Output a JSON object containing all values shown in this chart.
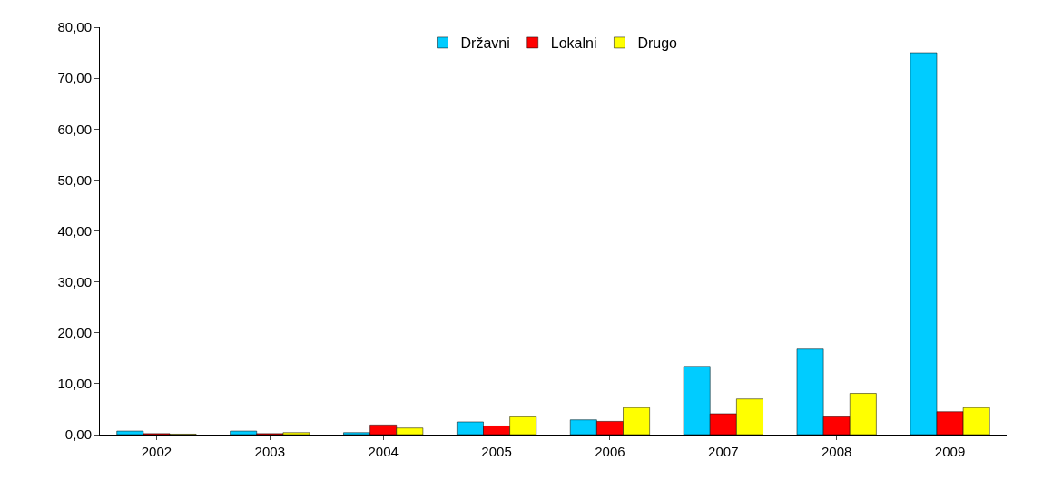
{
  "chart_data": {
    "type": "bar",
    "categories": [
      "2002",
      "2003",
      "2004",
      "2005",
      "2006",
      "2007",
      "2008",
      "2009"
    ],
    "series": [
      {
        "name": "Državni",
        "color": "#00ccff",
        "values": [
          0.7,
          0.7,
          0.4,
          2.5,
          2.9,
          13.4,
          16.8,
          75
        ]
      },
      {
        "name": "Lokalni",
        "color": "#ff0000",
        "values": [
          0.2,
          0.2,
          1.9,
          1.7,
          2.6,
          4.1,
          3.5,
          4.5
        ]
      },
      {
        "name": "Drugo",
        "color": "#ffff00",
        "values": [
          0.1,
          0.4,
          1.3,
          3.5,
          5.3,
          7.0,
          8.1,
          5.3
        ]
      }
    ],
    "ylim": [
      0,
      80
    ],
    "yticks": [
      {
        "value": 0,
        "label": "0,00"
      },
      {
        "value": 10,
        "label": "10,00"
      },
      {
        "value": 20,
        "label": "20,00"
      },
      {
        "value": 30,
        "label": "30,00"
      },
      {
        "value": 40,
        "label": "40,00"
      },
      {
        "value": 50,
        "label": "50,00"
      },
      {
        "value": 60,
        "label": "60,00"
      },
      {
        "value": 70,
        "label": "70,00"
      },
      {
        "value": 80,
        "label": "80,00"
      }
    ],
    "grid": false,
    "legend": "top"
  }
}
